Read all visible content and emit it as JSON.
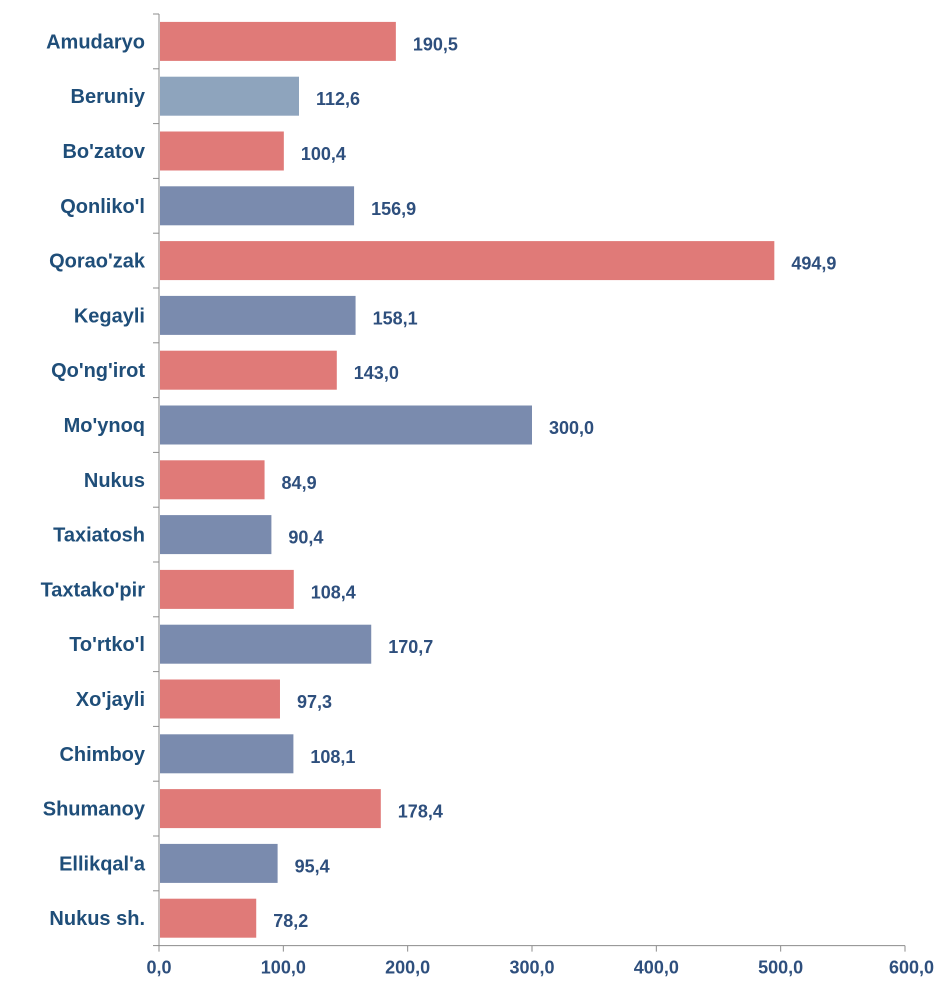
{
  "chart_data": {
    "type": "bar",
    "orientation": "horizontal",
    "title": "",
    "xlabel": "",
    "ylabel": "",
    "xlim": [
      0,
      600
    ],
    "x_ticks": [
      0,
      100,
      200,
      300,
      400,
      500,
      600
    ],
    "x_tick_labels": [
      "0,0",
      "100,0",
      "200,0",
      "300,0",
      "400,0",
      "500,0",
      "600,0"
    ],
    "grid": false,
    "legend": "none",
    "categories": [
      "Amudaryo",
      "Beruniy",
      "Bo'zatov",
      "Qonliko'l",
      "Qorao'zak",
      "Kegayli",
      "Qo'ng'irot",
      "Mo'ynoq",
      "Nukus",
      "Taxiatosh",
      "Taxtako'pir",
      "To'rtko'l",
      "Xo'jayli",
      "Chimboy",
      "Shumanoy",
      "Ellikqal'a",
      "Nukus sh."
    ],
    "values": [
      190.5,
      112.6,
      100.4,
      156.9,
      494.9,
      158.1,
      143.0,
      300.0,
      84.9,
      90.4,
      108.4,
      170.7,
      97.3,
      108.1,
      178.4,
      95.4,
      78.2
    ],
    "value_labels": [
      "190,5",
      "112,6",
      "100,4",
      "156,9",
      "494,9",
      "158,1",
      "143,0",
      "300,0",
      "84,9",
      "90,4",
      "108,4",
      "170,7",
      "97,3",
      "108,1",
      "178,4",
      "95,4",
      "78,2"
    ],
    "bar_colors": [
      "#e07a78",
      "#8ea4bd",
      "#e07a78",
      "#7a8bae",
      "#e07a78",
      "#7a8bae",
      "#e07a78",
      "#7a8bae",
      "#e07a78",
      "#7a8bae",
      "#e07a78",
      "#7a8bae",
      "#e07a78",
      "#7a8bae",
      "#e07a78",
      "#7a8bae",
      "#e07a78"
    ]
  }
}
